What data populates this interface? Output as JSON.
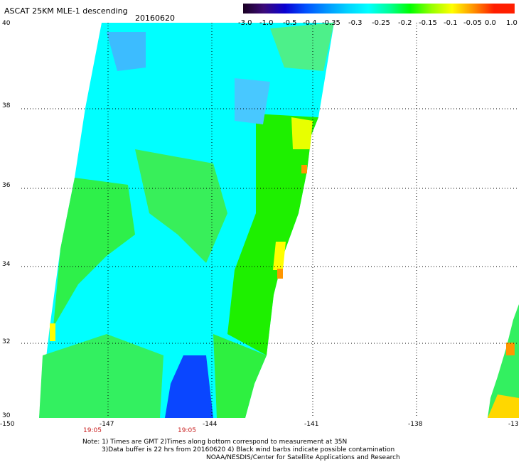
{
  "title": "ASCAT 25KM MLE-1 descending",
  "date": "20160620",
  "colorbar": {
    "labels": [
      "-3.0",
      "-1.0",
      "-0.5",
      "-0.4",
      "-0.35",
      "-0.3",
      "-0.25",
      "-0.2",
      "-0.15",
      "-0.1",
      "-0.05",
      "0.0",
      "1.0"
    ],
    "colors": [
      "#1a0022",
      "#3c0a78",
      "#0a00d2",
      "#0050ff",
      "#0096ff",
      "#00d2ff",
      "#00ffff",
      "#00ff96",
      "#00ff00",
      "#96ff00",
      "#ffff00",
      "#ff9600",
      "#ff1e00"
    ]
  },
  "axes": {
    "y_labels": [
      "40",
      "38",
      "36",
      "34",
      "32",
      "30"
    ],
    "x_labels": [
      "-150",
      "-147",
      "-144",
      "-141",
      "-138",
      "-13"
    ]
  },
  "time_labels": [
    "19:05",
    "19:05"
  ],
  "notes": {
    "line1": "Note: 1) Times are GMT 2)Times along bottom correspond to measurement at 35N",
    "line2": "3)Data buffer is 22 hrs from 20160620 4) Black wind barbs indicate possible contamination",
    "line3": "NOAA/NESDIS/Center for Satellite Applications and Research"
  }
}
